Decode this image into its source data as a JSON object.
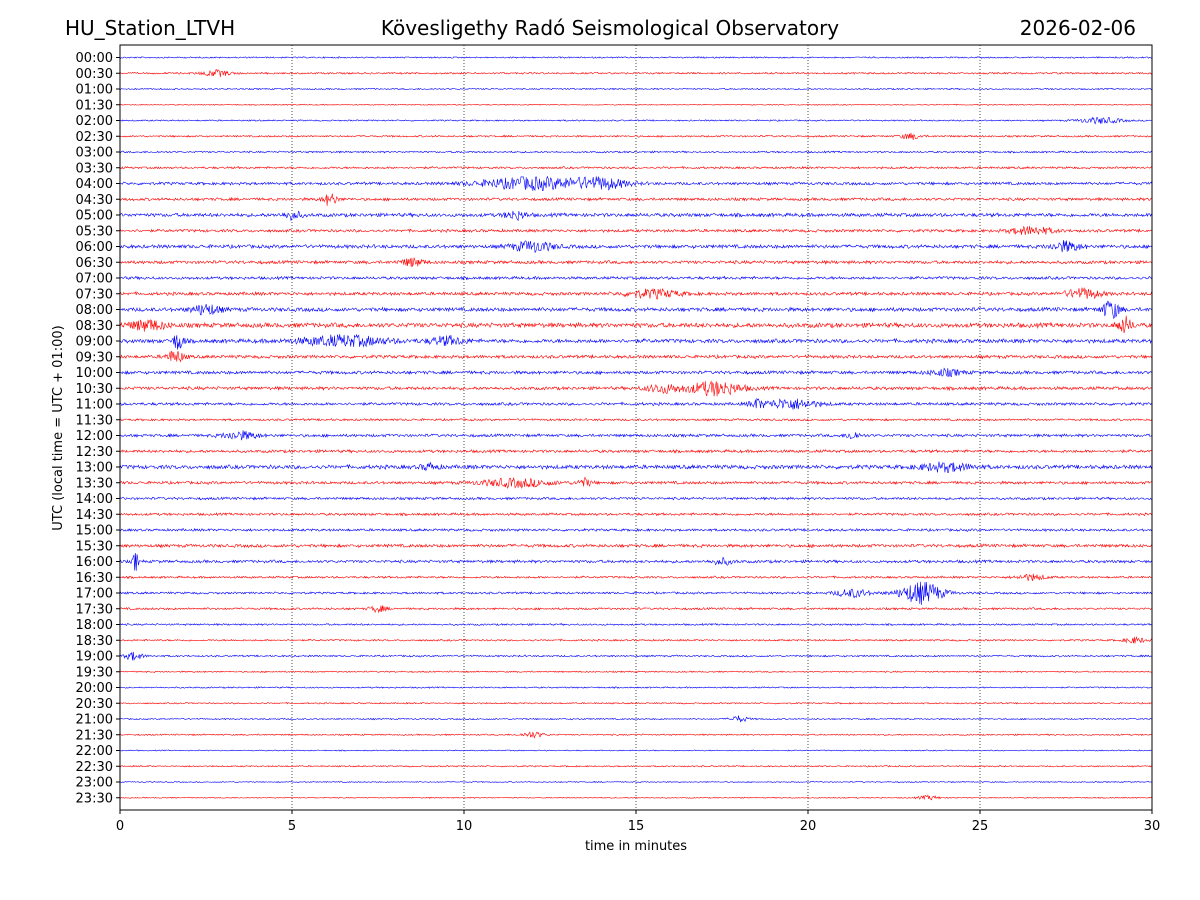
{
  "chart_data": {
    "type": "line",
    "station": "HU_Station_LTVH",
    "title": "Kövesligethy Radó Seismological Observatory",
    "date": "2026-02-06",
    "xlabel": "time in minutes",
    "ylabel": "UTC (local time = UTC + 01:00)",
    "xlim": [
      0,
      30
    ],
    "xticks": [
      0,
      5,
      10,
      15,
      20,
      25,
      30
    ],
    "grid": "vertical dotted at x ticks",
    "colors": [
      "#0000ff",
      "#ff0000"
    ],
    "row_labels": [
      "00:00",
      "00:30",
      "01:00",
      "01:30",
      "02:00",
      "02:30",
      "03:00",
      "03:30",
      "04:00",
      "04:30",
      "05:00",
      "05:30",
      "06:00",
      "06:30",
      "07:00",
      "07:30",
      "08:00",
      "08:30",
      "09:00",
      "09:30",
      "10:00",
      "10:30",
      "11:00",
      "11:30",
      "12:00",
      "12:30",
      "13:00",
      "13:30",
      "14:00",
      "14:30",
      "15:00",
      "15:30",
      "16:00",
      "16:30",
      "17:00",
      "17:30",
      "18:00",
      "18:30",
      "19:00",
      "19:30",
      "20:00",
      "20:30",
      "21:00",
      "21:30",
      "22:00",
      "22:30",
      "23:00",
      "23:30"
    ],
    "noise_levels": [
      0.8,
      1.0,
      0.8,
      0.6,
      0.8,
      1.0,
      1.0,
      1.2,
      1.6,
      1.6,
      2.0,
      1.6,
      2.0,
      1.8,
      1.6,
      1.8,
      2.2,
      2.6,
      2.2,
      1.8,
      1.8,
      1.8,
      1.6,
      1.2,
      1.6,
      1.6,
      2.2,
      1.6,
      1.4,
      1.4,
      1.4,
      1.8,
      1.6,
      1.2,
      1.2,
      1.2,
      1.0,
      1.0,
      1.0,
      0.8,
      0.8,
      0.8,
      0.8,
      0.8,
      0.6,
      0.8,
      0.6,
      0.6
    ],
    "events": [
      {
        "row": 1,
        "t": 2.8,
        "amp": 3,
        "dur": 0.8
      },
      {
        "row": 4,
        "t": 28.5,
        "amp": 3,
        "dur": 1.2
      },
      {
        "row": 5,
        "t": 23,
        "amp": 3,
        "dur": 0.6
      },
      {
        "row": 8,
        "t": 12,
        "amp": 6,
        "dur": 3
      },
      {
        "row": 8,
        "t": 14,
        "amp": 5,
        "dur": 1.5
      },
      {
        "row": 9,
        "t": 6.1,
        "amp": 6,
        "dur": 0.4
      },
      {
        "row": 10,
        "t": 5,
        "amp": 4,
        "dur": 0.5
      },
      {
        "row": 10,
        "t": 11.5,
        "amp": 4,
        "dur": 0.6
      },
      {
        "row": 11,
        "t": 26.5,
        "amp": 4,
        "dur": 1.2
      },
      {
        "row": 12,
        "t": 12,
        "amp": 5,
        "dur": 1.2
      },
      {
        "row": 12,
        "t": 27.5,
        "amp": 5,
        "dur": 0.8
      },
      {
        "row": 13,
        "t": 8.5,
        "amp": 4,
        "dur": 0.6
      },
      {
        "row": 15,
        "t": 15.5,
        "amp": 4,
        "dur": 1.5
      },
      {
        "row": 15,
        "t": 28,
        "amp": 5,
        "dur": 1
      },
      {
        "row": 16,
        "t": 2.5,
        "amp": 5,
        "dur": 0.8
      },
      {
        "row": 16,
        "t": 28.8,
        "amp": 9,
        "dur": 0.5
      },
      {
        "row": 17,
        "t": 0.8,
        "amp": 5,
        "dur": 1
      },
      {
        "row": 17,
        "t": 29.2,
        "amp": 8,
        "dur": 0.4
      },
      {
        "row": 18,
        "t": 1.7,
        "amp": 9,
        "dur": 0.3
      },
      {
        "row": 18,
        "t": 6.5,
        "amp": 5,
        "dur": 2.5
      },
      {
        "row": 18,
        "t": 9.5,
        "amp": 4,
        "dur": 1
      },
      {
        "row": 19,
        "t": 1.6,
        "amp": 6,
        "dur": 0.5
      },
      {
        "row": 20,
        "t": 24,
        "amp": 3,
        "dur": 1
      },
      {
        "row": 21,
        "t": 17.3,
        "amp": 7,
        "dur": 1.5
      },
      {
        "row": 21,
        "t": 15.8,
        "amp": 4,
        "dur": 1
      },
      {
        "row": 22,
        "t": 19.5,
        "amp": 5,
        "dur": 1.5
      },
      {
        "row": 22,
        "t": 18.5,
        "amp": 4,
        "dur": 0.4
      },
      {
        "row": 24,
        "t": 3.5,
        "amp": 4,
        "dur": 1
      },
      {
        "row": 24,
        "t": 21.3,
        "amp": 4,
        "dur": 0.4
      },
      {
        "row": 26,
        "t": 24,
        "amp": 4,
        "dur": 1.5
      },
      {
        "row": 26,
        "t": 9,
        "amp": 3,
        "dur": 0.5
      },
      {
        "row": 27,
        "t": 11.5,
        "amp": 4,
        "dur": 2
      },
      {
        "row": 27,
        "t": 13.5,
        "amp": 4,
        "dur": 0.4
      },
      {
        "row": 32,
        "t": 0.45,
        "amp": 10,
        "dur": 0.15
      },
      {
        "row": 32,
        "t": 17.5,
        "amp": 3,
        "dur": 0.6
      },
      {
        "row": 33,
        "t": 26.5,
        "amp": 3,
        "dur": 0.8
      },
      {
        "row": 34,
        "t": 23.3,
        "amp": 11,
        "dur": 1.2
      },
      {
        "row": 34,
        "t": 21.3,
        "amp": 4,
        "dur": 1
      },
      {
        "row": 35,
        "t": 7.5,
        "amp": 3,
        "dur": 0.5
      },
      {
        "row": 37,
        "t": 29.5,
        "amp": 3,
        "dur": 0.6
      },
      {
        "row": 38,
        "t": 0.4,
        "amp": 4,
        "dur": 0.5
      },
      {
        "row": 42,
        "t": 18,
        "amp": 3,
        "dur": 0.5
      },
      {
        "row": 43,
        "t": 12,
        "amp": 3,
        "dur": 0.6
      },
      {
        "row": 47,
        "t": 23.5,
        "amp": 2,
        "dur": 0.6
      }
    ]
  }
}
